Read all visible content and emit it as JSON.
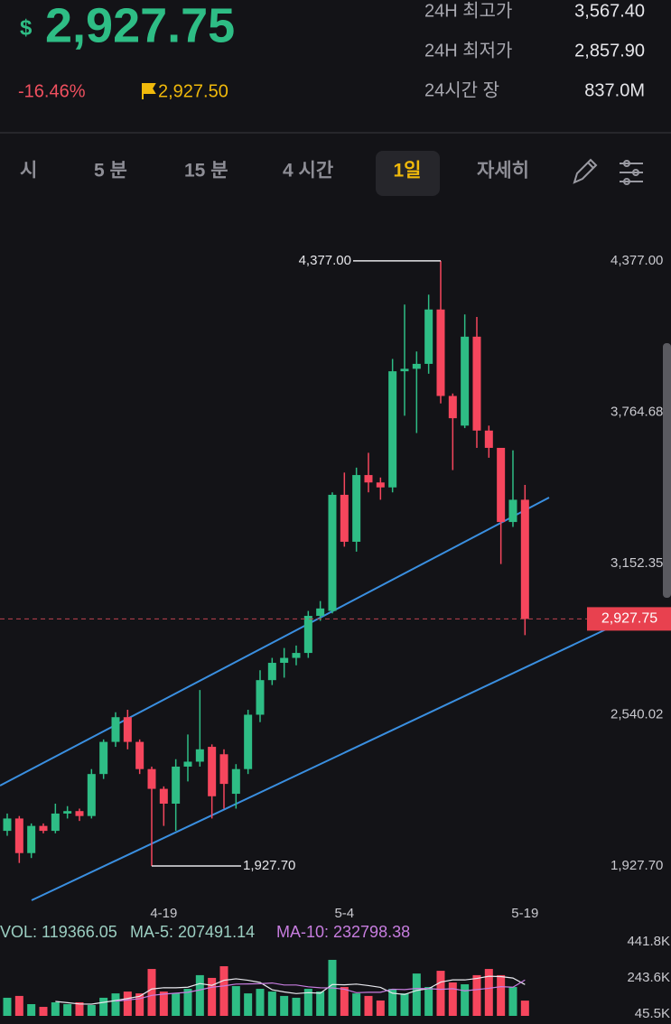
{
  "header": {
    "currency": "$",
    "price": "2,927.75",
    "change": "-16.46%",
    "flag_price": "2,927.50",
    "stats": [
      {
        "label": "24H 최고가",
        "value": "3,567.40"
      },
      {
        "label": "24H 최저가",
        "value": "2,857.90"
      },
      {
        "label": "24시간 장",
        "value": "837.0M"
      }
    ]
  },
  "tabs": [
    "시",
    "5 분",
    "15 분",
    "4 시간",
    "1일",
    "자세히"
  ],
  "chart_data": [
    {
      "type": "candlestick",
      "categories": [
        null,
        null,
        null,
        null,
        null,
        null,
        null,
        null,
        null,
        null,
        null,
        null,
        null,
        "4-19",
        null,
        null,
        null,
        null,
        null,
        null,
        null,
        null,
        null,
        null,
        null,
        null,
        null,
        null,
        "5-4",
        null,
        null,
        null,
        null,
        null,
        null,
        null,
        null,
        null,
        null,
        null,
        null,
        null,
        null,
        "5-19"
      ],
      "open": [
        2070,
        2120,
        1980,
        2090,
        2070,
        2140,
        2150,
        2130,
        2300,
        2430,
        2530,
        2430,
        2320,
        2240,
        2180,
        2330,
        2350,
        2410,
        2380,
        2220,
        2320,
        2540,
        2680,
        2750,
        2770,
        2790,
        2940,
        2960,
        3430,
        3240,
        3510,
        3480,
        3460,
        3930,
        3940,
        3960,
        4180,
        3830,
        3710,
        4070,
        3690,
        3620,
        3320,
        3410
      ],
      "high": [
        2140,
        2130,
        2100,
        2100,
        2180,
        2170,
        2160,
        2320,
        2440,
        2550,
        2560,
        2440,
        2330,
        2250,
        2360,
        2460,
        2640,
        2420,
        2400,
        2340,
        2560,
        2720,
        2770,
        2810,
        2820,
        2960,
        3000,
        3440,
        3520,
        3540,
        3600,
        3500,
        3980,
        4200,
        4010,
        4240,
        4377,
        3840,
        4160,
        4150,
        3710,
        3620,
        3610,
        3470
      ],
      "low": [
        2050,
        1940,
        1960,
        2060,
        2060,
        2120,
        2110,
        2120,
        2280,
        2410,
        2400,
        2300,
        1927.7,
        2090,
        2070,
        2270,
        2330,
        2120,
        2160,
        2160,
        2300,
        2510,
        2660,
        2690,
        2740,
        2770,
        2920,
        2950,
        3220,
        3200,
        3440,
        3410,
        3440,
        3750,
        3680,
        3920,
        3800,
        3530,
        3700,
        3620,
        3580,
        3150,
        3300,
        2862
      ],
      "close": [
        2120,
        1980,
        2090,
        2070,
        2140,
        2150,
        2130,
        2300,
        2430,
        2530,
        2430,
        2320,
        2240,
        2180,
        2330,
        2350,
        2400,
        2210,
        2260,
        2320,
        2540,
        2680,
        2750,
        2770,
        2790,
        2940,
        2970,
        3430,
        3240,
        3510,
        3480,
        3460,
        3930,
        3940,
        3960,
        4180,
        3830,
        3740,
        4070,
        3690,
        3620,
        3320,
        3410,
        2927.75
      ],
      "up_color": "#2ebd85",
      "down_color": "#f6465d",
      "ylim": [
        1778,
        4592
      ],
      "yticks": [
        {
          "value": 4377,
          "label": "4,377.00"
        },
        {
          "value": 3764.68,
          "label": "3,764.68"
        },
        {
          "value": 3152.35,
          "label": "3,152.35"
        },
        {
          "value": 2540.02,
          "label": "2,540.02"
        },
        {
          "value": 1927.7,
          "label": "1,927.70"
        }
      ],
      "current_price": {
        "value": 2927.75,
        "label": "2,927.75"
      },
      "annotations": [
        {
          "value": 4377,
          "label": "4,377.00"
        },
        {
          "value": 1927.7,
          "label": "1,927.70"
        }
      ]
    },
    {
      "type": "bar",
      "legend": [
        "VOL: 119366.05",
        "MA-5: 207491.14",
        "MA-10: 232798.38"
      ],
      "values": [
        135000,
        145000,
        100000,
        85000,
        110000,
        100000,
        110000,
        95000,
        135000,
        159000,
        169000,
        159000,
        293000,
        169000,
        159000,
        184000,
        259000,
        244000,
        308000,
        199000,
        159000,
        184000,
        169000,
        145000,
        135000,
        184000,
        169000,
        343000,
        194000,
        159000,
        145000,
        120000,
        184000,
        159000,
        268000,
        194000,
        283000,
        219000,
        209000,
        259000,
        293000,
        259000,
        194000,
        119366.05
      ],
      "series": [
        {
          "color": "#e8e8ee",
          "values": [
            null,
            null,
            null,
            null,
            115000,
            108000,
            101000,
            100000,
            110000,
            120000,
            131000,
            143000,
            183000,
            190000,
            190000,
            193000,
            213000,
            203000,
            231000,
            239000,
            231000,
            219000,
            179000,
            167000,
            158000,
            163000,
            160000,
            208000,
            206000,
            210000,
            202000,
            192000,
            160000,
            153000,
            175000,
            185000,
            221000,
            233000,
            233000,
            241000,
            253000,
            251000,
            243000,
            207491.14
          ]
        },
        {
          "color": "#c77ddf",
          "values": [
            null,
            null,
            null,
            null,
            null,
            null,
            null,
            null,
            null,
            116000,
            123000,
            130000,
            148000,
            155000,
            160000,
            165000,
            178000,
            193000,
            200000,
            210000,
            211000,
            212000,
            216000,
            205000,
            205000,
            195000,
            190000,
            189000,
            182000,
            163000,
            165000,
            165000,
            182000,
            180000,
            186000,
            185000,
            181000,
            185000,
            173000,
            180000,
            187000,
            196000,
            193000,
            232798.38
          ]
        }
      ],
      "ylim": [
        35600,
        461730
      ],
      "yticks": [
        {
          "value": 441800,
          "label": "441.8K"
        },
        {
          "value": 243600,
          "label": "243.6K"
        },
        {
          "value": 45500,
          "label": "45.5K"
        }
      ]
    }
  ]
}
